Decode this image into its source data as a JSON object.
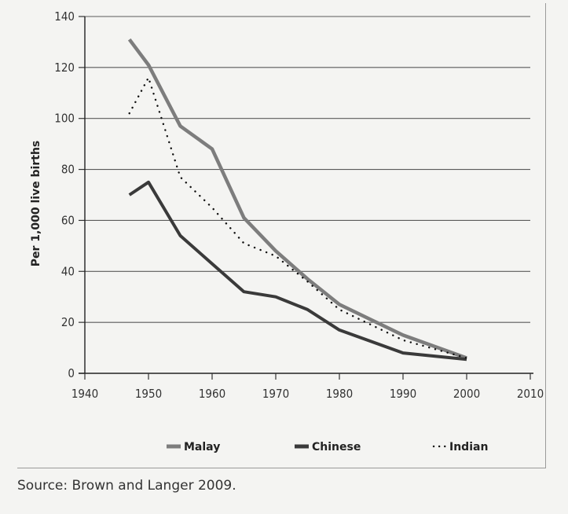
{
  "chart_data": {
    "type": "line",
    "title": "",
    "xlabel": "",
    "ylabel": "Per 1,000 live births",
    "xlim": [
      1940,
      2010
    ],
    "ylim": [
      0,
      140
    ],
    "xticks": [
      1940,
      1950,
      1960,
      1970,
      1980,
      1990,
      2000,
      2010
    ],
    "yticks": [
      0,
      20,
      40,
      60,
      80,
      100,
      120,
      140
    ],
    "grid": "horizontal",
    "legend_position": "bottom",
    "series": [
      {
        "name": "Malay",
        "color": "#7d7d7d",
        "style": "solid",
        "x": [
          1947,
          1950,
          1955,
          1960,
          1965,
          1970,
          1975,
          1980,
          1990,
          2000
        ],
        "y": [
          131,
          121,
          97,
          88,
          61,
          48,
          37,
          27,
          15,
          6
        ]
      },
      {
        "name": "Chinese",
        "color": "#3a3a3a",
        "style": "solid",
        "x": [
          1947,
          1950,
          1955,
          1960,
          1965,
          1970,
          1975,
          1980,
          1990,
          2000
        ],
        "y": [
          70,
          75,
          54,
          43,
          32,
          30,
          25,
          17,
          8,
          5.5
        ]
      },
      {
        "name": "Indian",
        "color": "#111111",
        "style": "dotted",
        "x": [
          1947,
          1950,
          1955,
          1960,
          1965,
          1970,
          1975,
          1980,
          1990,
          2000
        ],
        "y": [
          102,
          116,
          77,
          65,
          51,
          46,
          36,
          25,
          13,
          6
        ]
      }
    ]
  },
  "source_note": "Source: Brown and Langer 2009."
}
